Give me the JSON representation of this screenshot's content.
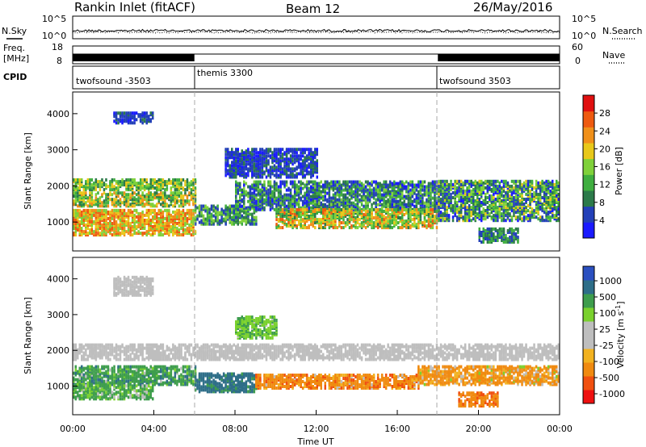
{
  "header": {
    "station": "Rankin Inlet (fitACF)",
    "beam": "Beam 12",
    "date": "26/May/2016"
  },
  "nsky_panel": {
    "left_label": "N.Sky",
    "right_label": "N.Search",
    "left_ticks": [
      "10^5",
      "10^0"
    ],
    "right_ticks": [
      "10^5",
      "10^0"
    ]
  },
  "freq_panel": {
    "left_label_1": "Freq.",
    "left_label_2": "[MHz]",
    "right_label": "Nave",
    "left_ticks": [
      "18",
      "8"
    ],
    "right_ticks": [
      "60",
      "0"
    ],
    "active_ranges_h": [
      [
        0,
        6
      ],
      [
        18,
        24
      ]
    ]
  },
  "cpid_panel": {
    "label": "CPID",
    "segments": [
      {
        "name": "twofsound -3503",
        "start_h": 0,
        "end_h": 6
      },
      {
        "name": "themis 3300",
        "start_h": 6,
        "end_h": 18
      },
      {
        "name": "twofsound 3503",
        "start_h": 18,
        "end_h": 24
      }
    ]
  },
  "x_axis": {
    "label": "Time UT",
    "ticks": [
      "00:00",
      "04:00",
      "08:00",
      "12:00",
      "16:00",
      "20:00",
      "00:00"
    ]
  },
  "colors": {
    "power_scale": [
      "#1a1aff",
      "#2340b8",
      "#2c7a4a",
      "#3fae3f",
      "#7fd13a",
      "#e8c81a",
      "#f0901a",
      "#ee5a10",
      "#e01010"
    ],
    "velocity_scale": [
      "#ee1010",
      "#f05010",
      "#f08a10",
      "#f2b220",
      "#bebebe",
      "#bebebe",
      "#7ad12e",
      "#3e9d4d",
      "#2e6e88",
      "#2b50c0"
    ]
  },
  "chart_data": [
    {
      "type": "heatmap",
      "title": "Power",
      "ylabel": "Slant Range [km]",
      "xlabel": "",
      "ylim": [
        200,
        4600
      ],
      "xlim_h": [
        0,
        24
      ],
      "yticks": [
        "1000",
        "2000",
        "3000",
        "4000"
      ],
      "colorbar_label": "Power [dB]",
      "colorbar_ticks": [
        "4",
        "8",
        "12",
        "16",
        "20",
        "24",
        "28"
      ],
      "colorbar_range": [
        0,
        32
      ],
      "regions": [
        {
          "t0": 0,
          "t1": 6,
          "r0": 1850,
          "r1": 2150,
          "value": 16,
          "spread": 8
        },
        {
          "t0": 0,
          "t1": 6,
          "r0": 1400,
          "r1": 1800,
          "value": 18,
          "spread": 10
        },
        {
          "t0": 0,
          "t1": 6,
          "r0": 600,
          "r1": 1300,
          "value": 24,
          "spread": 8
        },
        {
          "t0": 6,
          "t1": 9,
          "r0": 900,
          "r1": 1400,
          "value": 12,
          "spread": 8
        },
        {
          "t0": 7.5,
          "t1": 12,
          "r0": 2200,
          "r1": 3000,
          "value": 6,
          "spread": 4
        },
        {
          "t0": 8,
          "t1": 18,
          "r0": 1300,
          "r1": 2100,
          "value": 10,
          "spread": 8
        },
        {
          "t0": 10,
          "t1": 18,
          "r0": 800,
          "r1": 1300,
          "value": 20,
          "spread": 10
        },
        {
          "t0": 18,
          "t1": 24,
          "r0": 1000,
          "r1": 2100,
          "value": 12,
          "spread": 10
        },
        {
          "t0": 20,
          "t1": 22,
          "r0": 400,
          "r1": 800,
          "value": 10,
          "spread": 6
        },
        {
          "t0": 2,
          "t1": 4,
          "r0": 3700,
          "r1": 4000,
          "value": 6,
          "spread": 3
        }
      ]
    },
    {
      "type": "heatmap",
      "title": "Velocity",
      "ylabel": "Slant Range [km]",
      "xlabel": "Time UT",
      "ylim": [
        200,
        4600
      ],
      "xlim_h": [
        0,
        24
      ],
      "yticks": [
        "1000",
        "2000",
        "3000",
        "4000"
      ],
      "colorbar_label": "Velocity [m s^-1]",
      "colorbar_ticks": [
        "1000",
        "500",
        "100",
        "25",
        "-25",
        "-100",
        "-500",
        "-1000"
      ],
      "regions": [
        {
          "t0": 0,
          "t1": 24,
          "r0": 1700,
          "r1": 2150,
          "value": 0,
          "spread": 20
        },
        {
          "t0": 0,
          "t1": 6,
          "r0": 1000,
          "r1": 1500,
          "value": 300,
          "spread": 300
        },
        {
          "t0": 0,
          "t1": 4,
          "r0": 600,
          "r1": 1000,
          "value": 150,
          "spread": 150
        },
        {
          "t0": 6,
          "t1": 9,
          "r0": 800,
          "r1": 1300,
          "value": 700,
          "spread": 300
        },
        {
          "t0": 8,
          "t1": 10,
          "r0": 2300,
          "r1": 2900,
          "value": 80,
          "spread": 60
        },
        {
          "t0": 9,
          "t1": 17,
          "r0": 900,
          "r1": 1300,
          "value": -300,
          "spread": 300
        },
        {
          "t0": 17,
          "t1": 24,
          "r0": 1000,
          "r1": 1500,
          "value": -200,
          "spread": 250
        },
        {
          "t0": 19,
          "t1": 21,
          "r0": 400,
          "r1": 800,
          "value": -400,
          "spread": 200
        },
        {
          "t0": 2,
          "t1": 4,
          "r0": 3500,
          "r1": 4000,
          "value": 0,
          "spread": 15
        }
      ]
    }
  ]
}
